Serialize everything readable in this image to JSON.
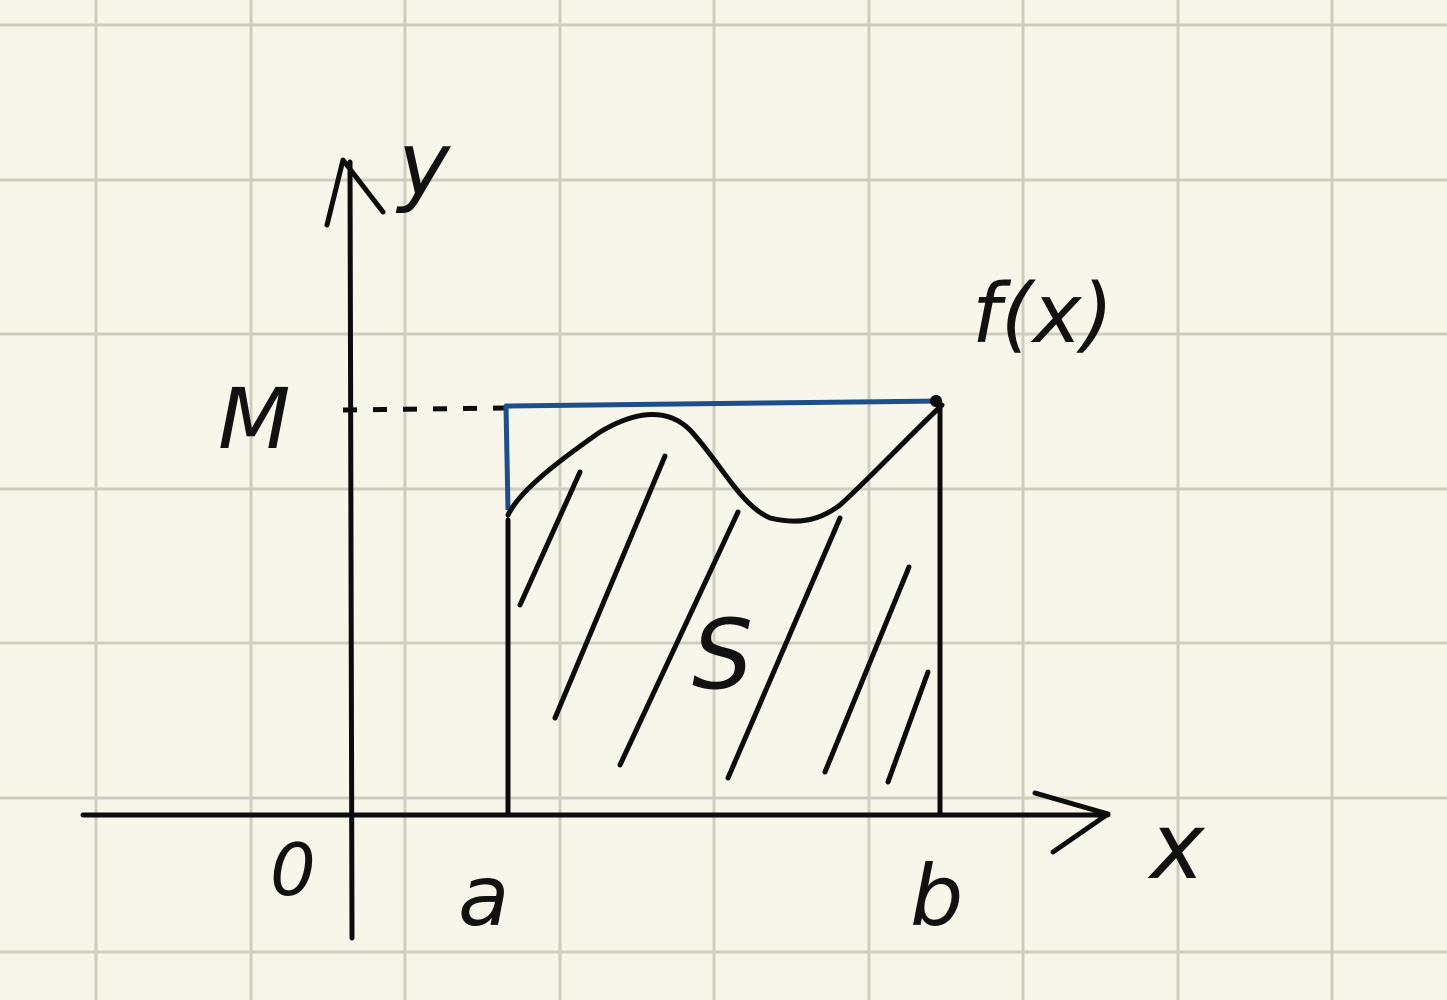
{
  "colors": {
    "paper": "#f8f6ea",
    "grid": "#cfcdbd",
    "ink": "#0c0c0c",
    "rectangle": "#1d4f8c"
  },
  "labels": {
    "y_axis": "y",
    "x_axis": "x",
    "origin": "0",
    "max_value": "M",
    "lower_bound": "a",
    "upper_bound": "b",
    "function": "f(x)",
    "area": "S"
  }
}
